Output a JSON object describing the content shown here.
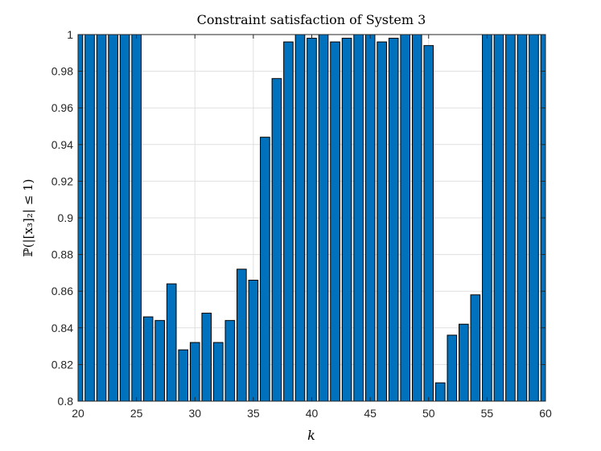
{
  "chart_data": {
    "type": "bar",
    "title": "Constraint satisfaction of System 3",
    "xlabel": "k",
    "ylabel": "ℙ(|[x₃]₂| ≤ 1)",
    "xlim": [
      20,
      60
    ],
    "ylim": [
      0.8,
      1
    ],
    "grid": true,
    "bar_color": "#0072BD",
    "edge_color": "#000000",
    "x_ticks": [
      20,
      25,
      30,
      35,
      40,
      45,
      50,
      55,
      60
    ],
    "x_tick_labels": [
      "20",
      "25",
      "30",
      "35",
      "40",
      "45",
      "50",
      "55",
      "60"
    ],
    "y_ticks": [
      0.8,
      0.82,
      0.84,
      0.86,
      0.88,
      0.9,
      0.92,
      0.94,
      0.96,
      0.98,
      1
    ],
    "y_tick_labels": [
      "0.8",
      "0.82",
      "0.84",
      "0.86",
      "0.88",
      "0.9",
      "0.92",
      "0.94",
      "0.96",
      "0.98",
      "1"
    ],
    "x": [
      20,
      21,
      22,
      23,
      24,
      25,
      26,
      27,
      28,
      29,
      30,
      31,
      32,
      33,
      34,
      35,
      36,
      37,
      38,
      39,
      40,
      41,
      42,
      43,
      44,
      45,
      46,
      47,
      48,
      49,
      50,
      51,
      52,
      53,
      54,
      55,
      56,
      57,
      58,
      59,
      60
    ],
    "values": [
      1,
      1,
      1,
      1,
      1,
      1,
      0.846,
      0.844,
      0.864,
      0.828,
      0.832,
      0.848,
      0.832,
      0.844,
      0.872,
      0.866,
      0.944,
      0.976,
      0.996,
      1,
      0.998,
      1,
      0.996,
      0.998,
      1,
      1,
      0.996,
      0.998,
      1,
      1,
      0.994,
      0.81,
      0.836,
      0.842,
      0.858,
      1,
      1,
      1,
      1,
      1,
      1
    ]
  }
}
